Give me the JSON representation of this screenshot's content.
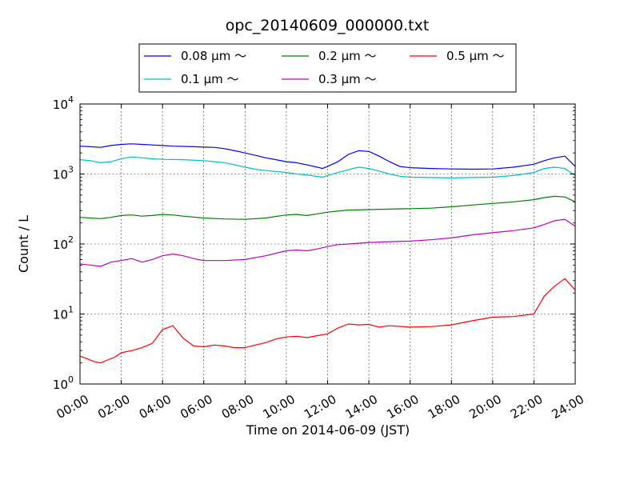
{
  "chart_data": {
    "type": "line",
    "title": "opc_20140609_000000.txt",
    "xlabel": "Time on 2014-06-09 (JST)",
    "ylabel": "Count / L",
    "xlim": [
      "00:00",
      "24:00"
    ],
    "ylim": [
      1,
      10000
    ],
    "yscale": "log",
    "grid": true,
    "legend_position": "top-center (above plot), 3 columns",
    "x_ticks": [
      "00:00",
      "02:00",
      "04:00",
      "06:00",
      "08:00",
      "10:00",
      "12:00",
      "14:00",
      "16:00",
      "18:00",
      "20:00",
      "22:00",
      "24:00"
    ],
    "y_ticks": [
      {
        "value": 1,
        "base": "10",
        "exp": "0"
      },
      {
        "value": 10,
        "base": "10",
        "exp": "1"
      },
      {
        "value": 100,
        "base": "10",
        "exp": "2"
      },
      {
        "value": 1000,
        "base": "10",
        "exp": "3"
      },
      {
        "value": 10000,
        "base": "10",
        "exp": "4"
      }
    ],
    "series": [
      {
        "name": "0.08 μm ～",
        "color": "#0000ff",
        "points": [
          [
            "00:00",
            2500
          ],
          [
            "00:30",
            2450
          ],
          [
            "01:00",
            2400
          ],
          [
            "01:30",
            2550
          ],
          [
            "02:00",
            2650
          ],
          [
            "02:30",
            2700
          ],
          [
            "03:00",
            2650
          ],
          [
            "03:30",
            2600
          ],
          [
            "04:00",
            2550
          ],
          [
            "04:30",
            2500
          ],
          [
            "05:00",
            2480
          ],
          [
            "05:30",
            2450
          ],
          [
            "06:00",
            2420
          ],
          [
            "06:30",
            2400
          ],
          [
            "07:00",
            2300
          ],
          [
            "07:30",
            2150
          ],
          [
            "08:00",
            2000
          ],
          [
            "08:30",
            1850
          ],
          [
            "09:00",
            1700
          ],
          [
            "09:30",
            1600
          ],
          [
            "10:00",
            1500
          ],
          [
            "10:30",
            1450
          ],
          [
            "11:00",
            1350
          ],
          [
            "11:30",
            1250
          ],
          [
            "11:45",
            1200
          ],
          [
            "12:00",
            1280
          ],
          [
            "12:30",
            1500
          ],
          [
            "13:00",
            1900
          ],
          [
            "13:30",
            2150
          ],
          [
            "14:00",
            2100
          ],
          [
            "14:30",
            1800
          ],
          [
            "15:00",
            1500
          ],
          [
            "15:30",
            1280
          ],
          [
            "16:00",
            1230
          ],
          [
            "17:00",
            1200
          ],
          [
            "18:00",
            1180
          ],
          [
            "19:00",
            1170
          ],
          [
            "20:00",
            1180
          ],
          [
            "21:00",
            1250
          ],
          [
            "22:00",
            1380
          ],
          [
            "22:30",
            1550
          ],
          [
            "23:00",
            1700
          ],
          [
            "23:30",
            1800
          ],
          [
            "24:00",
            1280
          ]
        ]
      },
      {
        "name": "0.1 μm ～",
        "color": "#00bfbf",
        "points": [
          [
            "00:00",
            1600
          ],
          [
            "00:30",
            1550
          ],
          [
            "01:00",
            1450
          ],
          [
            "01:30",
            1500
          ],
          [
            "02:00",
            1650
          ],
          [
            "02:30",
            1750
          ],
          [
            "03:00",
            1700
          ],
          [
            "03:30",
            1650
          ],
          [
            "04:00",
            1620
          ],
          [
            "05:00",
            1600
          ],
          [
            "06:00",
            1550
          ],
          [
            "07:00",
            1450
          ],
          [
            "07:30",
            1350
          ],
          [
            "08:00",
            1250
          ],
          [
            "08:30",
            1170
          ],
          [
            "09:00",
            1120
          ],
          [
            "10:00",
            1050
          ],
          [
            "10:30",
            1000
          ],
          [
            "11:00",
            970
          ],
          [
            "11:45",
            900
          ],
          [
            "12:00",
            950
          ],
          [
            "12:30",
            1050
          ],
          [
            "13:00",
            1150
          ],
          [
            "13:30",
            1250
          ],
          [
            "14:00",
            1200
          ],
          [
            "14:30",
            1100
          ],
          [
            "15:00",
            1000
          ],
          [
            "15:30",
            930
          ],
          [
            "16:00",
            900
          ],
          [
            "17:00",
            890
          ],
          [
            "18:00",
            880
          ],
          [
            "19:00",
            890
          ],
          [
            "20:00",
            900
          ],
          [
            "21:00",
            950
          ],
          [
            "22:00",
            1050
          ],
          [
            "22:30",
            1200
          ],
          [
            "23:00",
            1250
          ],
          [
            "23:30",
            1200
          ],
          [
            "24:00",
            950
          ]
        ]
      },
      {
        "name": "0.2 μm ～",
        "color": "#008000",
        "points": [
          [
            "00:00",
            240
          ],
          [
            "00:30",
            235
          ],
          [
            "01:00",
            230
          ],
          [
            "01:30",
            240
          ],
          [
            "02:00",
            255
          ],
          [
            "02:30",
            260
          ],
          [
            "03:00",
            250
          ],
          [
            "03:30",
            255
          ],
          [
            "04:00",
            265
          ],
          [
            "04:30",
            260
          ],
          [
            "05:00",
            250
          ],
          [
            "06:00",
            235
          ],
          [
            "07:00",
            228
          ],
          [
            "08:00",
            225
          ],
          [
            "09:00",
            235
          ],
          [
            "10:00",
            260
          ],
          [
            "10:30",
            265
          ],
          [
            "11:00",
            255
          ],
          [
            "11:30",
            270
          ],
          [
            "12:00",
            285
          ],
          [
            "12:30",
            295
          ],
          [
            "13:00",
            305
          ],
          [
            "14:00",
            310
          ],
          [
            "15:00",
            315
          ],
          [
            "16:00",
            320
          ],
          [
            "17:00",
            325
          ],
          [
            "18:00",
            340
          ],
          [
            "19:00",
            360
          ],
          [
            "20:00",
            380
          ],
          [
            "21:00",
            400
          ],
          [
            "22:00",
            430
          ],
          [
            "22:30",
            460
          ],
          [
            "23:00",
            480
          ],
          [
            "23:30",
            470
          ],
          [
            "24:00",
            400
          ]
        ]
      },
      {
        "name": "0.3 μm ～",
        "color": "#bf00bf",
        "points": [
          [
            "00:00",
            52
          ],
          [
            "00:30",
            50
          ],
          [
            "01:00",
            48
          ],
          [
            "01:30",
            55
          ],
          [
            "02:00",
            58
          ],
          [
            "02:30",
            62
          ],
          [
            "03:00",
            55
          ],
          [
            "03:30",
            60
          ],
          [
            "04:00",
            68
          ],
          [
            "04:30",
            72
          ],
          [
            "05:00",
            68
          ],
          [
            "05:30",
            62
          ],
          [
            "06:00",
            58
          ],
          [
            "07:00",
            58
          ],
          [
            "08:00",
            60
          ],
          [
            "09:00",
            68
          ],
          [
            "10:00",
            80
          ],
          [
            "10:30",
            82
          ],
          [
            "11:00",
            80
          ],
          [
            "11:30",
            85
          ],
          [
            "12:00",
            92
          ],
          [
            "12:30",
            98
          ],
          [
            "13:00",
            100
          ],
          [
            "14:00",
            105
          ],
          [
            "15:00",
            108
          ],
          [
            "16:00",
            110
          ],
          [
            "17:00",
            115
          ],
          [
            "18:00",
            122
          ],
          [
            "19:00",
            135
          ],
          [
            "20:00",
            145
          ],
          [
            "21:00",
            155
          ],
          [
            "22:00",
            170
          ],
          [
            "22:30",
            190
          ],
          [
            "23:00",
            215
          ],
          [
            "23:30",
            225
          ],
          [
            "24:00",
            180
          ]
        ]
      },
      {
        "name": "0.5 μm ～",
        "color": "#ff0000",
        "points": [
          [
            "00:00",
            2.5
          ],
          [
            "00:20",
            2.3
          ],
          [
            "00:40",
            2.1
          ],
          [
            "01:00",
            2.0
          ],
          [
            "01:20",
            2.2
          ],
          [
            "01:40",
            2.4
          ],
          [
            "02:00",
            2.8
          ],
          [
            "02:30",
            3.0
          ],
          [
            "03:00",
            3.3
          ],
          [
            "03:30",
            3.8
          ],
          [
            "04:00",
            6.0
          ],
          [
            "04:30",
            6.8
          ],
          [
            "05:00",
            4.5
          ],
          [
            "05:30",
            3.5
          ],
          [
            "06:00",
            3.4
          ],
          [
            "06:30",
            3.6
          ],
          [
            "07:00",
            3.5
          ],
          [
            "07:30",
            3.3
          ],
          [
            "08:00",
            3.3
          ],
          [
            "08:30",
            3.6
          ],
          [
            "09:00",
            3.9
          ],
          [
            "09:30",
            4.4
          ],
          [
            "10:00",
            4.7
          ],
          [
            "10:30",
            4.8
          ],
          [
            "11:00",
            4.6
          ],
          [
            "11:30",
            4.9
          ],
          [
            "12:00",
            5.2
          ],
          [
            "12:30",
            6.3
          ],
          [
            "13:00",
            7.2
          ],
          [
            "13:30",
            7.0
          ],
          [
            "14:00",
            7.1
          ],
          [
            "14:30",
            6.5
          ],
          [
            "15:00",
            6.8
          ],
          [
            "16:00",
            6.5
          ],
          [
            "17:00",
            6.6
          ],
          [
            "18:00",
            7.0
          ],
          [
            "19:00",
            8.0
          ],
          [
            "20:00",
            9.0
          ],
          [
            "21:00",
            9.2
          ],
          [
            "22:00",
            10
          ],
          [
            "22:30",
            18
          ],
          [
            "23:00",
            25
          ],
          [
            "23:30",
            32
          ],
          [
            "24:00",
            22
          ]
        ]
      }
    ]
  }
}
